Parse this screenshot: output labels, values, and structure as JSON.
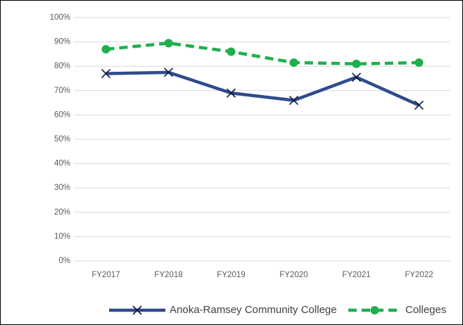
{
  "chart_data": {
    "type": "line",
    "categories": [
      "FY2017",
      "FY2018",
      "FY2019",
      "FY2020",
      "FY2021",
      "FY2022"
    ],
    "series": [
      {
        "name": "Anoka-Ramsey Community College",
        "color": "#2f4b8c",
        "marker": "x",
        "dashed": false,
        "values": [
          77,
          77.5,
          69,
          66,
          75.5,
          64
        ]
      },
      {
        "name": "Colleges",
        "color": "#1db04c",
        "marker": "circle",
        "dashed": true,
        "values": [
          87,
          89.5,
          86,
          81.5,
          81,
          81.5
        ]
      }
    ],
    "ylim": [
      0,
      100
    ],
    "yticks": [
      {
        "value": 0,
        "label": "0%"
      },
      {
        "value": 10,
        "label": "10%"
      },
      {
        "value": 20,
        "label": "20%"
      },
      {
        "value": 30,
        "label": "30%"
      },
      {
        "value": 40,
        "label": "40%"
      },
      {
        "value": 50,
        "label": "50%"
      },
      {
        "value": 60,
        "label": "60%"
      },
      {
        "value": 70,
        "label": "70%"
      },
      {
        "value": 80,
        "label": "80%"
      },
      {
        "value": 90,
        "label": "90%"
      },
      {
        "value": 100,
        "label": "100%"
      }
    ],
    "grid": true,
    "legend": "bottom"
  }
}
